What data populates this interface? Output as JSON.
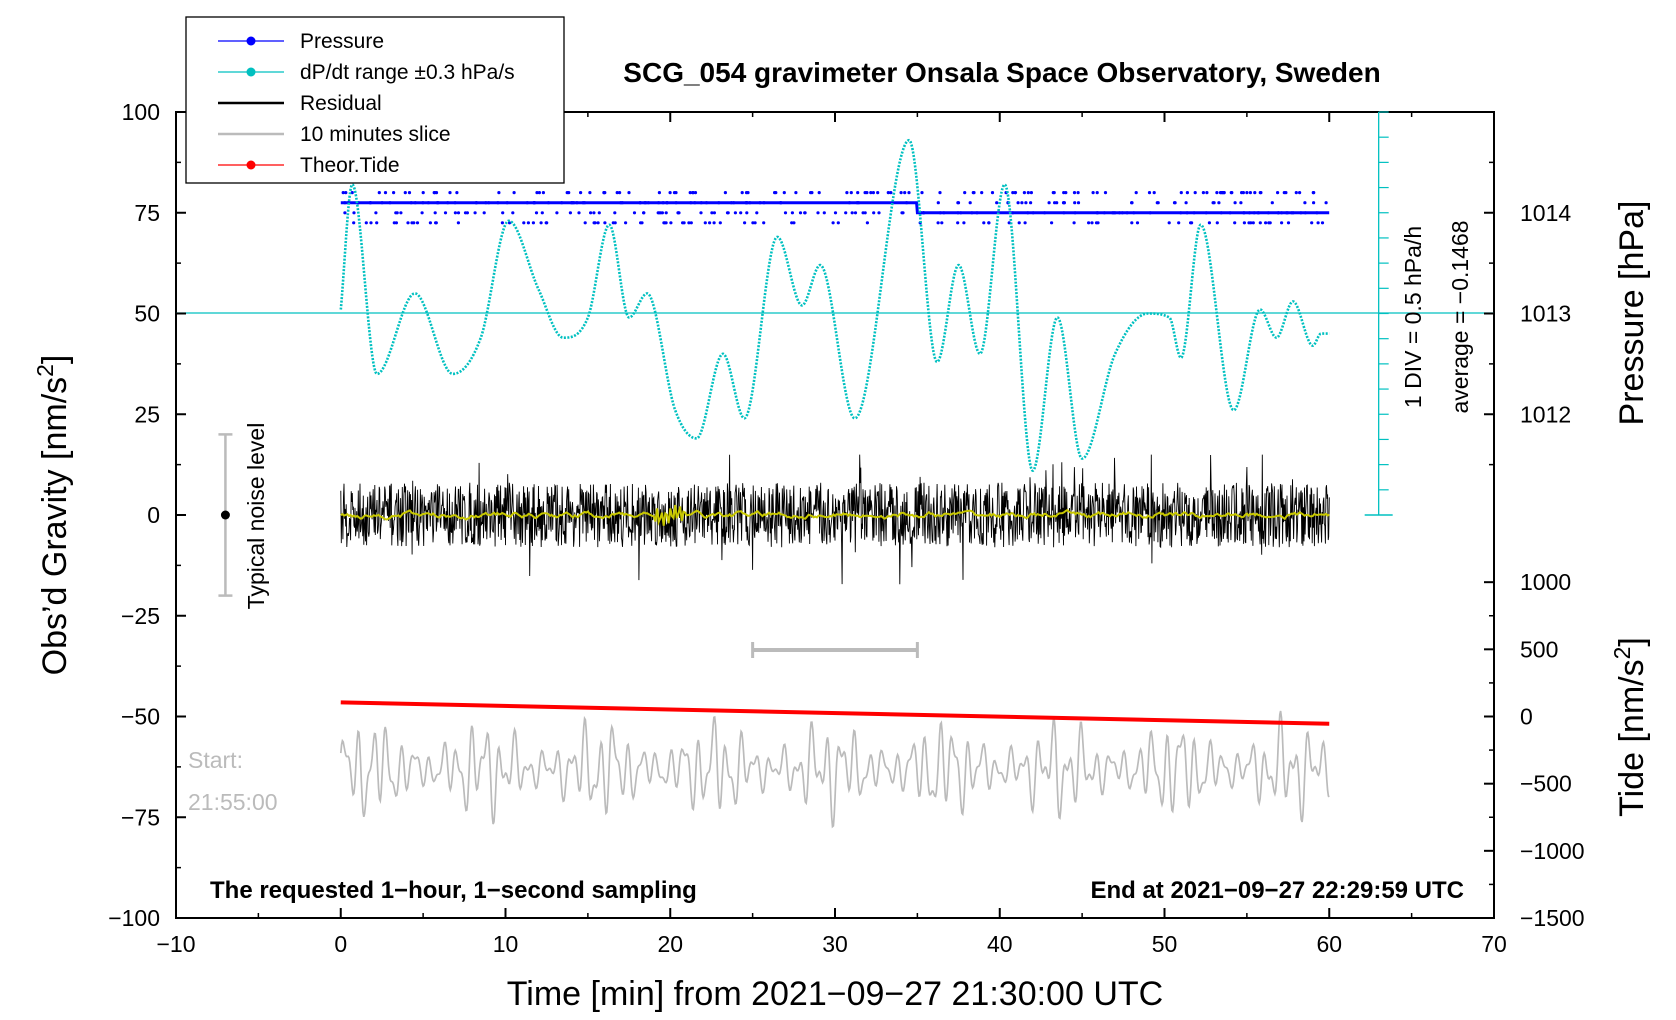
{
  "chart_data": {
    "type": "line",
    "title": "SCG_054 gravimeter Onsala Space Observatory, Sweden",
    "xlabel": "Time [min] from 2021−09−27 21:30:00 UTC",
    "ylabel": "Obs’d Gravity [nm/s²]",
    "ylabel_main": "Obs’d Gravity [nm/s",
    "ylabel_sup": "2",
    "ylabel_end": "]",
    "y2label": "Pressure [hPa]",
    "y3label_main": "Tide [nm/s",
    "y3label_sup": "2",
    "y3label_end": "]",
    "xlim": [
      -10,
      70
    ],
    "ylim": [
      -100,
      100
    ],
    "x_ticks": [
      "−10",
      "0",
      "10",
      "20",
      "30",
      "40",
      "50",
      "60",
      "70"
    ],
    "x_tick_values": [
      -10,
      0,
      10,
      20,
      30,
      40,
      50,
      60,
      70
    ],
    "y_ticks": [
      "100",
      "75",
      "50",
      "25",
      "0",
      "−25",
      "−50",
      "−75",
      "−100"
    ],
    "y_tick_values": [
      100,
      75,
      50,
      25,
      0,
      -25,
      -50,
      -75,
      -100
    ],
    "pressure_axis": {
      "ticks": [
        "1014",
        "1013",
        "1012"
      ],
      "tick_values": [
        1014,
        1013,
        1012
      ],
      "gravity_equivalent": [
        75,
        50,
        25
      ]
    },
    "tide_axis": {
      "ticks": [
        "1000",
        "500",
        "0",
        "−500",
        "−1000",
        "−1500"
      ],
      "tick_values": [
        1000,
        500,
        0,
        -500,
        -1000,
        -1500
      ],
      "gravity_equivalent": [
        -16.67,
        -33.33,
        -50,
        -66.67,
        -83.33,
        -100
      ]
    },
    "legend": [
      {
        "label": "Pressure",
        "color": "#0000ff",
        "style": "line-dot"
      },
      {
        "label": "dP/dt range ±0.3 hPa/s",
        "color": "#00c0c0",
        "style": "line-dot"
      },
      {
        "label": "Residual",
        "color": "#000000",
        "style": "line"
      },
      {
        "label": "10 minutes slice",
        "color": "#bbbbbb",
        "style": "line"
      },
      {
        "label": "Theor.Tide",
        "color": "#ff0000",
        "style": "line-dot"
      }
    ],
    "annotations": {
      "dpdt_scale": "1 DIV = 0.5 hPa/h",
      "dpdt_average": "average = −0.1468",
      "noise": "Typical noise level",
      "start_label": "Start:",
      "start_time": "21:55:00",
      "bottom_left": "The requested 1−hour, 1−second sampling",
      "bottom_right": "End at 2021−09−27 22:29:59 UTC"
    },
    "series": [
      {
        "name": "Pressure",
        "color": "#0000ff",
        "levels_gravity": [
          80,
          77.5,
          75,
          72.5
        ],
        "main_level_gravity": [
          77.5,
          75
        ],
        "switch_minute": 35
      },
      {
        "name": "dP/dt",
        "color": "#00c0c0",
        "baseline_gravity": 50,
        "points": [
          [
            0,
            51
          ],
          [
            0.7,
            82
          ],
          [
            2.2,
            35
          ],
          [
            4.5,
            55
          ],
          [
            6.8,
            35
          ],
          [
            8.5,
            44
          ],
          [
            10.2,
            73
          ],
          [
            12,
            56
          ],
          [
            13.5,
            44
          ],
          [
            15,
            49
          ],
          [
            16.3,
            72
          ],
          [
            17.5,
            49
          ],
          [
            18.6,
            55
          ],
          [
            20.3,
            26
          ],
          [
            21.6,
            19
          ],
          [
            23.2,
            40
          ],
          [
            24.5,
            24
          ],
          [
            26.5,
            69
          ],
          [
            28,
            52
          ],
          [
            29.1,
            62
          ],
          [
            31.2,
            24
          ],
          [
            34.5,
            93
          ],
          [
            36.2,
            38
          ],
          [
            37.5,
            62
          ],
          [
            38.8,
            40
          ],
          [
            40.3,
            82
          ],
          [
            42,
            11
          ],
          [
            43.5,
            49
          ],
          [
            45,
            14
          ],
          [
            47,
            40
          ],
          [
            49,
            50
          ],
          [
            50.3,
            49
          ],
          [
            51,
            39
          ],
          [
            52.2,
            72
          ],
          [
            54.2,
            26
          ],
          [
            55.8,
            51
          ],
          [
            56.8,
            44
          ],
          [
            57.8,
            53
          ],
          [
            59,
            42
          ],
          [
            59.5,
            45
          ],
          [
            60,
            45
          ]
        ]
      },
      {
        "name": "Residual",
        "color": "#000000",
        "center_gravity": 0,
        "typical_amplitude": 8,
        "max_amplitude": 20
      },
      {
        "name": "10 minutes slice",
        "color": "#bbbbbb",
        "x_range": [
          25,
          35
        ],
        "trace_center_gravity": -63,
        "trace_amplitude": 12
      },
      {
        "name": "Theor.Tide",
        "color": "#ff0000",
        "points_gravity": [
          [
            0,
            -46.5
          ],
          [
            60,
            -51.8
          ]
        ]
      }
    ],
    "noise_bar": {
      "x": -7,
      "low": -20,
      "high": 20,
      "center": 0
    }
  }
}
